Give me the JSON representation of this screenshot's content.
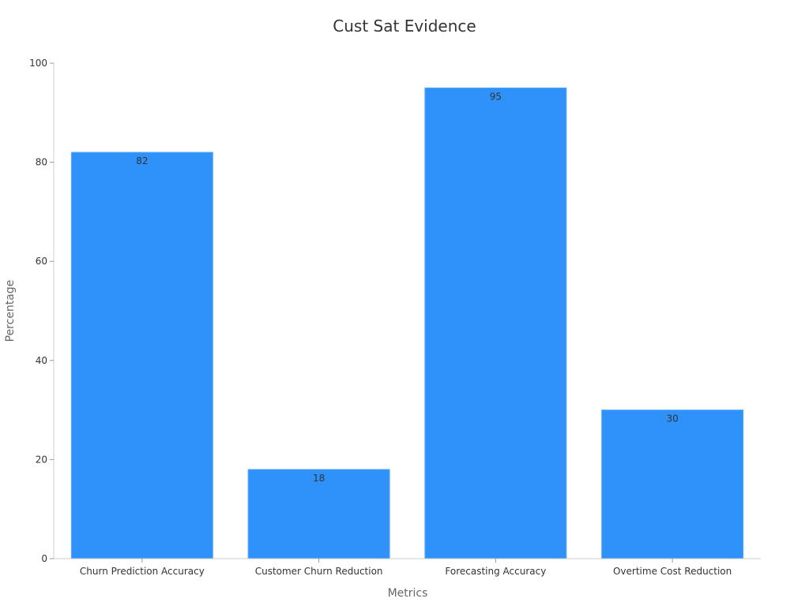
{
  "chart_data": {
    "type": "bar",
    "title": "Cust Sat Evidence",
    "xlabel": "Metrics",
    "ylabel": "Percentage",
    "categories": [
      "Churn Prediction Accuracy",
      "Customer Churn Reduction",
      "Forecasting Accuracy",
      "Overtime Cost Reduction"
    ],
    "values": [
      82,
      18,
      95,
      30
    ],
    "ylim": [
      0,
      100
    ],
    "yticks": [
      0,
      20,
      40,
      60,
      80,
      100
    ],
    "grid": false,
    "legend": "none",
    "bar_color": "#2f92fa",
    "bar_border_color": "#5aa9fb"
  }
}
